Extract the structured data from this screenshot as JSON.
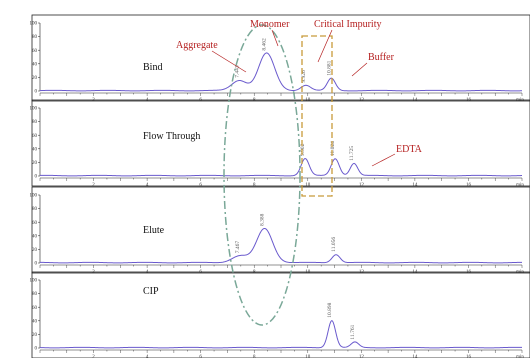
{
  "chart_data": [
    {
      "type": "line",
      "panel": "Bind",
      "y_ticks": [
        0,
        20,
        40,
        60,
        80,
        100
      ],
      "x_ticks": [
        2,
        4,
        6,
        8,
        10,
        12,
        14,
        16
      ],
      "x_unit": "min",
      "xlim": [
        0,
        18
      ],
      "peaks": [
        {
          "rt": 7.443,
          "label": "7.443",
          "height": 15,
          "width": 0.28
        },
        {
          "rt": 8.462,
          "label": "8.462",
          "height": 55,
          "width": 0.3
        },
        {
          "rt": 9.926,
          "label": "9.926",
          "height": 8,
          "width": 0.18
        },
        {
          "rt": 10.881,
          "label": "10.881",
          "height": 18,
          "width": 0.15
        }
      ]
    },
    {
      "type": "line",
      "panel": "Flow Through",
      "y_ticks": [
        0,
        20,
        40,
        60,
        80,
        100
      ],
      "x_ticks": [
        2,
        4,
        6,
        8,
        10,
        12,
        14,
        16
      ],
      "x_unit": "min",
      "xlim": [
        0,
        18
      ],
      "peaks": [
        {
          "rt": 9.902,
          "label": "9.902",
          "height": 25,
          "width": 0.15
        },
        {
          "rt": 11.024,
          "label": "11.024",
          "height": 25,
          "width": 0.15
        },
        {
          "rt": 11.725,
          "label": "11.725",
          "height": 18,
          "width": 0.14
        }
      ]
    },
    {
      "type": "line",
      "panel": "Elute",
      "y_ticks": [
        0,
        20,
        40,
        60,
        80,
        100
      ],
      "x_ticks": [
        2,
        4,
        6,
        8,
        10,
        12,
        14,
        16
      ],
      "x_unit": "min",
      "xlim": [
        0,
        18
      ],
      "peaks": [
        {
          "rt": 7.467,
          "label": "7.467",
          "height": 10,
          "width": 0.3
        },
        {
          "rt": 8.388,
          "label": "8.388",
          "height": 50,
          "width": 0.3
        },
        {
          "rt": 11.056,
          "label": "11.056",
          "height": 12,
          "width": 0.15
        }
      ]
    },
    {
      "type": "line",
      "panel": "CIP",
      "y_ticks": [
        0,
        20,
        40,
        60,
        80,
        100
      ],
      "x_ticks": [
        2,
        4,
        6,
        8,
        10,
        12,
        14,
        16
      ],
      "x_unit": "min",
      "xlim": [
        0,
        18
      ],
      "peaks": [
        {
          "rt": 10.898,
          "label": "10.898",
          "height": 40,
          "width": 0.14
        },
        {
          "rt": 11.761,
          "label": "11.761",
          "height": 8,
          "width": 0.14
        }
      ]
    }
  ],
  "annotations": {
    "monomer": "Monomer",
    "critical_impurity": "Critical Impurity",
    "aggregate": "Aggregate",
    "buffer": "Buffer",
    "edta": "EDTA"
  },
  "colors": {
    "trace": "#6a5acd",
    "annotation": "#b52020",
    "ellipse": "#7aa898",
    "box": "#c89a3a"
  }
}
